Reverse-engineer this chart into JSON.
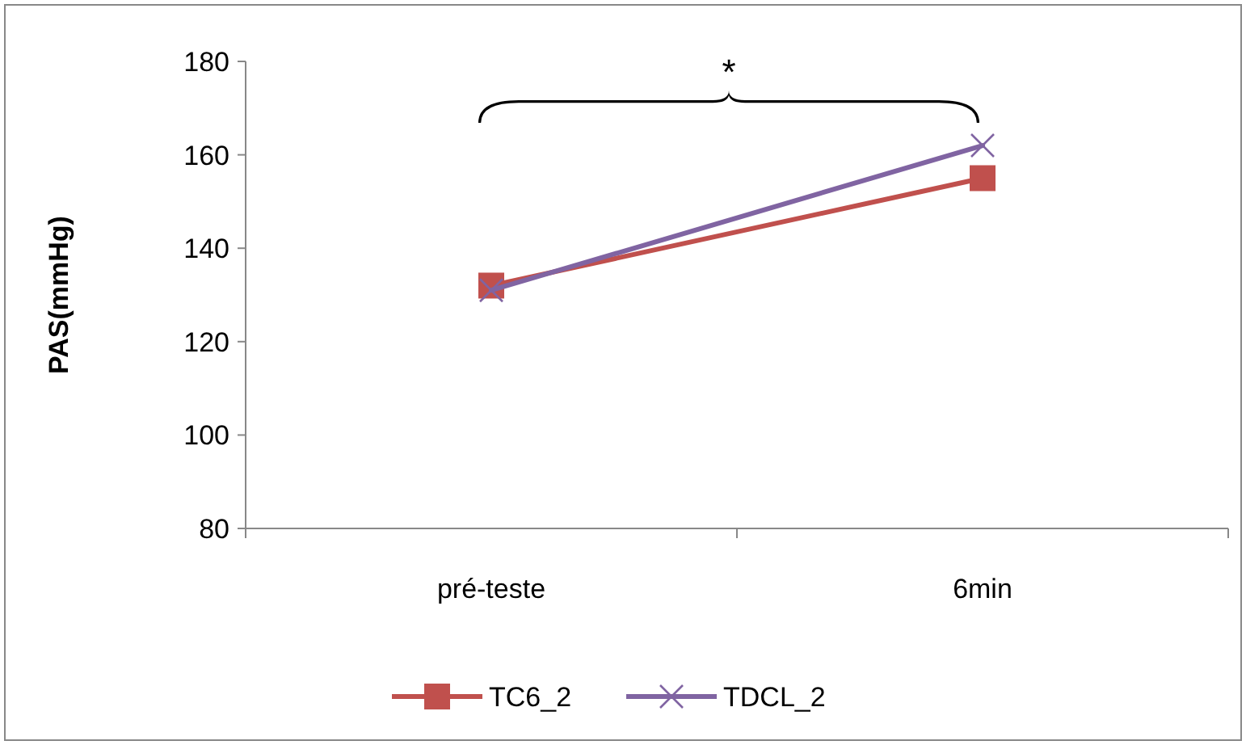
{
  "chart_data": {
    "type": "line",
    "ylabel": "PAS(mmHg)",
    "categories": [
      "pré-teste",
      "6min"
    ],
    "series": [
      {
        "name": "TC6_2",
        "color": "#c0504d",
        "values": [
          132,
          155
        ],
        "marker": "square"
      },
      {
        "name": "TDCL_2",
        "color": "#8064a2",
        "values": [
          131,
          162
        ],
        "marker": "cross"
      }
    ],
    "ylim": [
      80,
      180
    ],
    "yticks": [
      80,
      100,
      120,
      140,
      160,
      180
    ],
    "grid": false,
    "legend": "bottom",
    "annotations": [
      "*"
    ]
  }
}
